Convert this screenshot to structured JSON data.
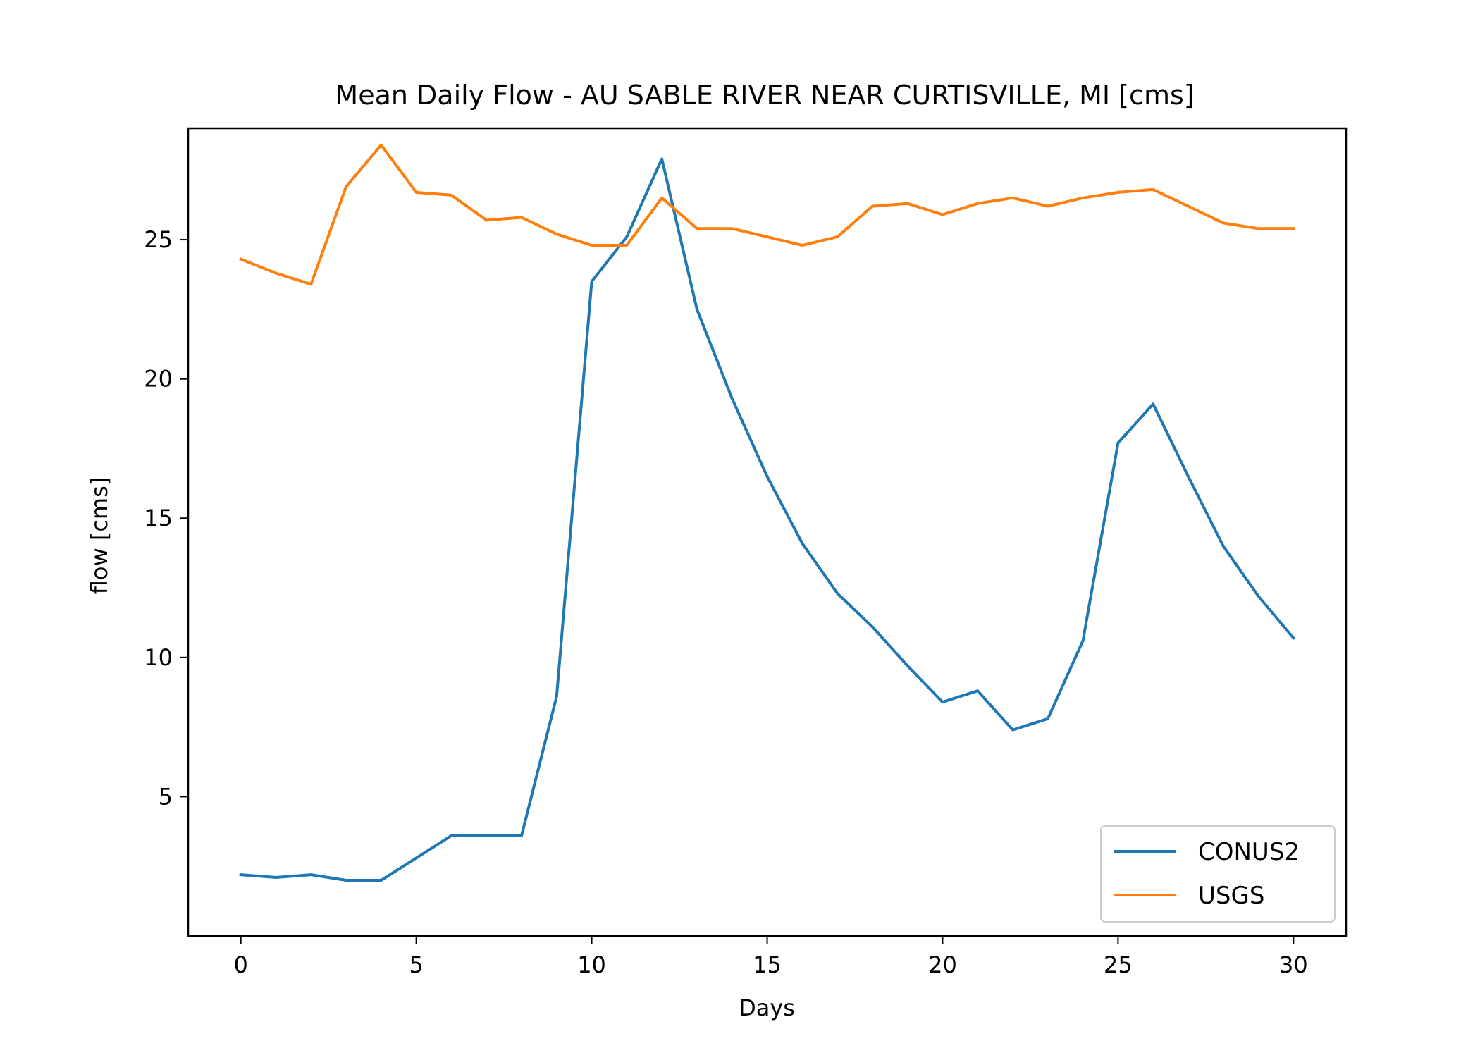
{
  "chart_data": {
    "type": "line",
    "title": "Mean Daily Flow - AU SABLE RIVER NEAR CURTISVILLE, MI [cms]",
    "xlabel": "Days",
    "ylabel": "flow [cms]",
    "xlim": [
      -1.5,
      31.5
    ],
    "ylim": [
      0.0,
      29.0
    ],
    "xticks": [
      0,
      5,
      10,
      15,
      20,
      25,
      30
    ],
    "yticks": [
      5,
      10,
      15,
      20,
      25
    ],
    "grid": false,
    "legend_position": "lower-right",
    "x": [
      0,
      1,
      2,
      3,
      4,
      5,
      6,
      7,
      8,
      9,
      10,
      11,
      12,
      13,
      14,
      15,
      16,
      17,
      18,
      19,
      20,
      21,
      22,
      23,
      24,
      25,
      26,
      27,
      28,
      29,
      30
    ],
    "series": [
      {
        "name": "CONUS2",
        "color": "#1f77b4",
        "values": [
          2.2,
          2.1,
          2.2,
          2.0,
          2.0,
          2.8,
          3.6,
          3.6,
          3.6,
          8.6,
          23.5,
          25.1,
          27.9,
          22.5,
          19.3,
          16.5,
          14.1,
          12.3,
          11.1,
          9.7,
          8.4,
          8.8,
          7.4,
          7.8,
          10.6,
          17.7,
          19.1,
          16.5,
          14.0,
          12.2,
          10.7
        ]
      },
      {
        "name": "USGS",
        "color": "#ff7f0e",
        "values": [
          24.3,
          23.8,
          23.4,
          26.9,
          28.4,
          26.7,
          26.6,
          25.7,
          25.8,
          25.2,
          24.8,
          24.8,
          26.5,
          25.4,
          25.4,
          25.1,
          24.8,
          25.1,
          26.2,
          26.3,
          25.9,
          26.3,
          26.5,
          26.2,
          26.5,
          26.7,
          26.8,
          26.2,
          25.6,
          25.4,
          25.4
        ]
      }
    ]
  }
}
